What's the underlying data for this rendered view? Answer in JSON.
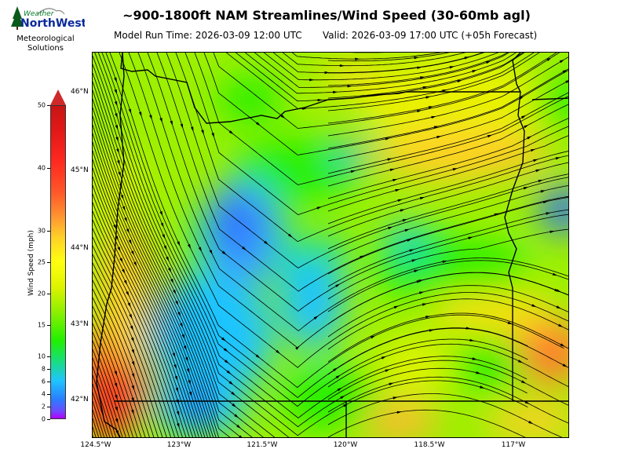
{
  "header": {
    "title": "~900-1800ft NAM Streamlines/Wind Speed (30-60mb agl)",
    "model_run": "Model Run Time: 2026-03-09 12:00 UTC",
    "valid": "Valid: 2026-03-09 17:00 UTC  (+05h Forecast)"
  },
  "logo": {
    "brand_top": "Weather",
    "brand_main": "NorthWest",
    "line1": "Meteorological",
    "line2": "Solutions"
  },
  "colorbar": {
    "label": "Wind Speed (mph)",
    "ticks": [
      "0",
      "2",
      "4",
      "6",
      "8",
      "10",
      "15",
      "20",
      "25",
      "30",
      "40",
      "50"
    ],
    "min": 0,
    "max": 50,
    "extend": "max"
  },
  "map": {
    "lat_labels": [
      "46°N",
      "45°N",
      "44°N",
      "43°N",
      "42°N"
    ],
    "lon_labels": [
      "124.5°W",
      "123°W",
      "121.5°W",
      "120°W",
      "118.5°W",
      "117°W"
    ],
    "colors": {
      "calm": "#3aa0ff",
      "light": "#22f000",
      "moderate": "#ddf300",
      "strong": "#ff9a30",
      "very_strong": "#ff2a20"
    }
  }
}
